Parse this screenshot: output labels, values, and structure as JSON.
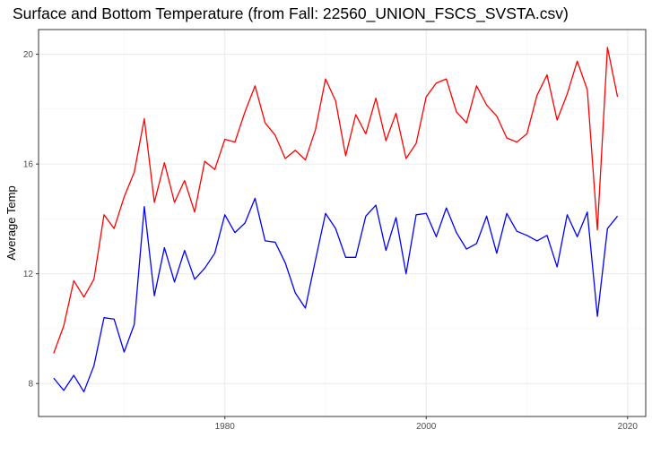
{
  "chart_data": {
    "type": "line",
    "title": "Surface and Bottom Temperature (from Fall: 22560_UNION_FSCS_SVSTA.csv)",
    "xlabel": "",
    "ylabel": "Average Temp",
    "xlim": [
      1961.5,
      2021.8
    ],
    "ylim": [
      6.8,
      20.9
    ],
    "x_ticks": [
      1980,
      2000,
      2020
    ],
    "y_ticks": [
      8,
      12,
      16,
      20
    ],
    "grid": true,
    "legend": "none",
    "x": [
      1963,
      1964,
      1965,
      1966,
      1967,
      1968,
      1969,
      1970,
      1971,
      1972,
      1973,
      1974,
      1975,
      1976,
      1977,
      1978,
      1979,
      1980,
      1981,
      1982,
      1983,
      1984,
      1985,
      1986,
      1987,
      1988,
      1989,
      1990,
      1991,
      1992,
      1993,
      1994,
      1995,
      1996,
      1997,
      1998,
      1999,
      2000,
      2001,
      2002,
      2003,
      2004,
      2005,
      2006,
      2007,
      2008,
      2009,
      2010,
      2011,
      2012,
      2013,
      2014,
      2015,
      2016,
      2017,
      2018,
      2019
    ],
    "series": [
      {
        "color": "#ff0000",
        "values": [
          9.1,
          10.1,
          11.75,
          11.15,
          11.8,
          14.15,
          13.65,
          14.8,
          15.7,
          17.65,
          14.6,
          16.05,
          14.6,
          15.4,
          14.25,
          16.1,
          15.8,
          16.9,
          16.8,
          17.9,
          18.85,
          17.5,
          17.05,
          16.2,
          16.5,
          16.15,
          17.25,
          19.1,
          18.3,
          16.3,
          17.8,
          17.1,
          18.4,
          16.85,
          17.85,
          16.2,
          16.75,
          18.45,
          18.95,
          19.1,
          17.9,
          17.5,
          18.85,
          18.15,
          17.75,
          16.95,
          16.8,
          17.1,
          18.5,
          19.25,
          17.6,
          18.55,
          19.75,
          18.7,
          13.6,
          20.25,
          18.45
        ]
      },
      {
        "color": "#0000ff",
        "values": [
          8.2,
          7.75,
          8.3,
          7.7,
          8.65,
          10.4,
          10.35,
          9.15,
          10.15,
          14.45,
          11.2,
          12.95,
          11.7,
          12.85,
          11.8,
          12.2,
          12.75,
          14.15,
          13.5,
          13.85,
          14.75,
          13.2,
          13.15,
          12.4,
          11.3,
          10.75,
          12.5,
          14.2,
          13.65,
          12.6,
          12.6,
          14.1,
          14.5,
          12.85,
          14.05,
          12.0,
          14.15,
          14.2,
          13.35,
          14.4,
          13.5,
          12.9,
          13.1,
          14.1,
          12.75,
          14.2,
          13.55,
          13.4,
          13.2,
          13.4,
          12.25,
          14.15,
          13.35,
          14.25,
          10.45,
          13.65,
          14.1
        ]
      }
    ]
  }
}
